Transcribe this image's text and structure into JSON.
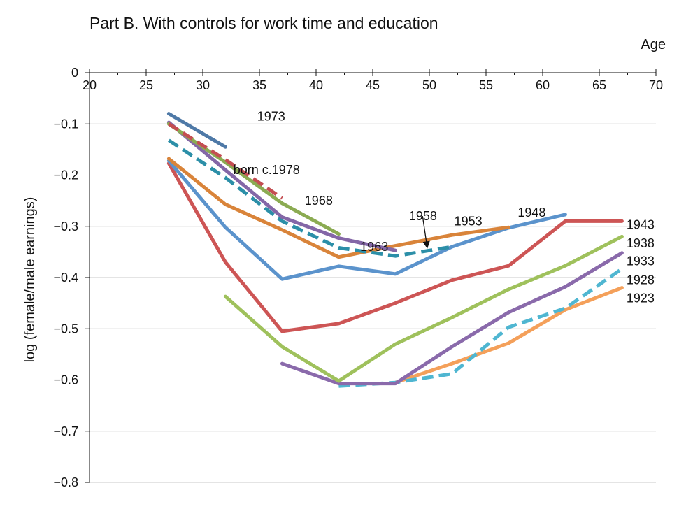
{
  "chart_data": {
    "type": "line",
    "title": "Part B. With controls for work time and education",
    "xlabel": "Age",
    "ylabel": "log (female/male earnings)",
    "xlim": [
      20,
      70
    ],
    "ylim": [
      -0.8,
      0
    ],
    "xticks": [
      20,
      25,
      30,
      35,
      40,
      45,
      50,
      55,
      60,
      65,
      70
    ],
    "yticks": [
      {
        "value": 0,
        "label": "0"
      },
      {
        "value": -0.1,
        "label": "−0.1"
      },
      {
        "value": -0.2,
        "label": "−0.2"
      },
      {
        "value": -0.3,
        "label": "−0.3"
      },
      {
        "value": -0.4,
        "label": "−0.4"
      },
      {
        "value": -0.5,
        "label": "−0.5"
      },
      {
        "value": -0.6,
        "label": "−0.6"
      },
      {
        "value": -0.7,
        "label": "−0.7"
      },
      {
        "value": -0.8,
        "label": "−0.8"
      }
    ],
    "grid": true,
    "series": [
      {
        "name": "born c.1978",
        "color": "#4e79a7",
        "dashed": false,
        "points": [
          [
            27,
            -0.08
          ],
          [
            32,
            -0.145
          ]
        ]
      },
      {
        "name": "1973",
        "color": "#c44e52",
        "dashed": true,
        "points": [
          [
            27,
            -0.1
          ],
          [
            32,
            -0.17
          ],
          [
            37,
            -0.245
          ]
        ]
      },
      {
        "name": "1968",
        "color": "#8bab52",
        "dashed": false,
        "points": [
          [
            27,
            -0.1
          ],
          [
            32,
            -0.175
          ],
          [
            37,
            -0.255
          ],
          [
            42,
            -0.315
          ]
        ]
      },
      {
        "name": "1963",
        "color": "#8467a7",
        "dashed": false,
        "points": [
          [
            27,
            -0.097
          ],
          [
            32,
            -0.19
          ],
          [
            37,
            -0.282
          ],
          [
            42,
            -0.323
          ],
          [
            47,
            -0.347
          ]
        ]
      },
      {
        "name": "1958",
        "color": "#2c8fa8",
        "dashed": true,
        "points": [
          [
            27,
            -0.132
          ],
          [
            32,
            -0.205
          ],
          [
            37,
            -0.29
          ],
          [
            42,
            -0.342
          ],
          [
            47,
            -0.358
          ],
          [
            52,
            -0.34
          ]
        ]
      },
      {
        "name": "1953",
        "color": "#d9843a",
        "dashed": false,
        "points": [
          [
            27,
            -0.168
          ],
          [
            32,
            -0.257
          ],
          [
            37,
            -0.307
          ],
          [
            42,
            -0.36
          ],
          [
            47,
            -0.338
          ],
          [
            52,
            -0.317
          ],
          [
            57,
            -0.302
          ]
        ]
      },
      {
        "name": "1948",
        "color": "#5b93cc",
        "dashed": false,
        "points": [
          [
            27,
            -0.172
          ],
          [
            32,
            -0.302
          ],
          [
            37,
            -0.403
          ],
          [
            42,
            -0.378
          ],
          [
            47,
            -0.393
          ],
          [
            52,
            -0.34
          ],
          [
            57,
            -0.303
          ],
          [
            62,
            -0.277
          ]
        ]
      },
      {
        "name": "1943",
        "color": "#cd5555",
        "dashed": false,
        "points": [
          [
            27,
            -0.177
          ],
          [
            32,
            -0.37
          ],
          [
            37,
            -0.505
          ],
          [
            42,
            -0.49
          ],
          [
            47,
            -0.45
          ],
          [
            52,
            -0.405
          ],
          [
            57,
            -0.377
          ],
          [
            62,
            -0.29
          ],
          [
            67,
            -0.29
          ]
        ]
      },
      {
        "name": "1938",
        "color": "#9fc15c",
        "dashed": false,
        "points": [
          [
            32,
            -0.437
          ],
          [
            37,
            -0.535
          ],
          [
            42,
            -0.602
          ],
          [
            47,
            -0.53
          ],
          [
            52,
            -0.478
          ],
          [
            57,
            -0.423
          ],
          [
            62,
            -0.377
          ],
          [
            67,
            -0.32
          ]
        ]
      },
      {
        "name": "1933",
        "color": "#8a6aab",
        "dashed": false,
        "points": [
          [
            37,
            -0.568
          ],
          [
            42,
            -0.607
          ],
          [
            47,
            -0.607
          ],
          [
            52,
            -0.535
          ],
          [
            57,
            -0.468
          ],
          [
            62,
            -0.418
          ],
          [
            67,
            -0.352
          ]
        ]
      },
      {
        "name": "1928",
        "color": "#4fb6d1",
        "dashed": true,
        "points": [
          [
            42,
            -0.612
          ],
          [
            47,
            -0.605
          ],
          [
            52,
            -0.588
          ],
          [
            57,
            -0.497
          ],
          [
            62,
            -0.46
          ],
          [
            67,
            -0.383
          ]
        ]
      },
      {
        "name": "1923",
        "color": "#f4a05a",
        "dashed": false,
        "points": [
          [
            47,
            -0.605
          ],
          [
            52,
            -0.568
          ],
          [
            57,
            -0.528
          ],
          [
            62,
            -0.463
          ],
          [
            67,
            -0.42
          ]
        ]
      }
    ],
    "annotations": [
      {
        "text": "born c.1978",
        "x": 32.7,
        "y": -0.19
      },
      {
        "text": "1973",
        "x": 34.8,
        "y": -0.085
      },
      {
        "text": "1968",
        "x": 39,
        "y": -0.25
      },
      {
        "text": "1963",
        "x": 43.9,
        "y": -0.34
      },
      {
        "text": "1958",
        "x": 48.2,
        "y": -0.28
      },
      {
        "text": "1953",
        "x": 52.2,
        "y": -0.29
      },
      {
        "text": "1948",
        "x": 57.8,
        "y": -0.273
      },
      {
        "text": "1943",
        "x": 67.4,
        "y": -0.297
      },
      {
        "text": "1938",
        "x": 67.4,
        "y": -0.333
      },
      {
        "text": "1933",
        "x": 67.4,
        "y": -0.368
      },
      {
        "text": "1928",
        "x": 67.4,
        "y": -0.405
      },
      {
        "text": "1923",
        "x": 67.4,
        "y": -0.44
      }
    ],
    "arrow": {
      "label": "1958",
      "from": [
        49.4,
        -0.28
      ],
      "to": [
        49.8,
        -0.34
      ]
    }
  }
}
